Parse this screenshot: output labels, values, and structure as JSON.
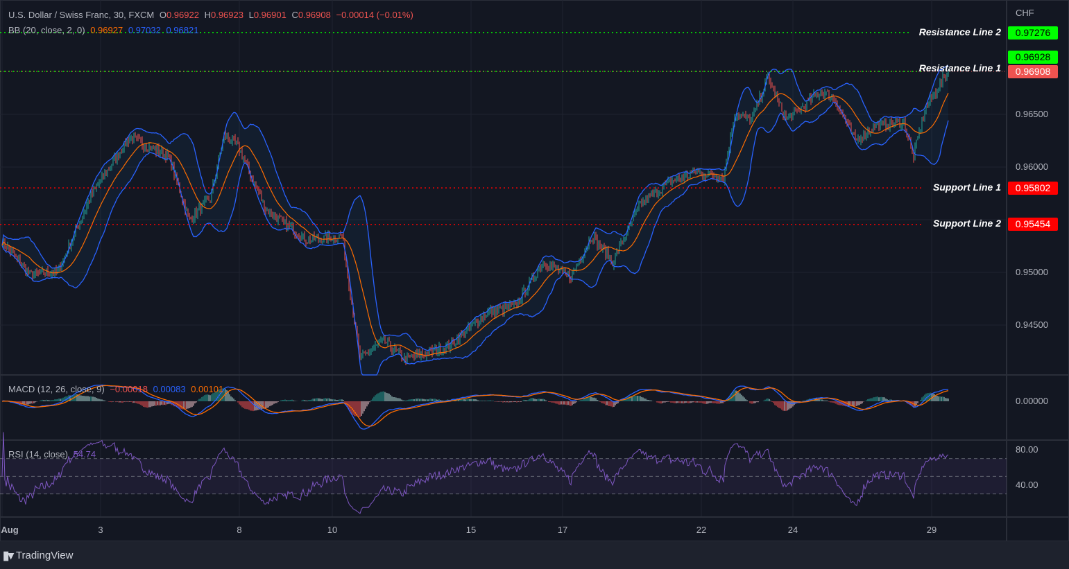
{
  "header": {
    "symbol": "U.S. Dollar / Swiss Franc, 30, FXCM",
    "o_label": "O",
    "o": "0.96922",
    "h_label": "H",
    "h": "0.96923",
    "l_label": "L",
    "l": "0.96901",
    "c_label": "C",
    "c": "0.96908",
    "change": "−0.00014 (−0.01%)"
  },
  "bb": {
    "label": "BB (20, close, 2, 0)",
    "basis": "0.96927",
    "upper": "0.97032",
    "lower": "0.96821"
  },
  "macd": {
    "label": "MACD (12, 26, close, 9)",
    "hist": "−0.00018",
    "macd": "0.00083",
    "signal": "0.00101"
  },
  "rsi": {
    "label": "RSI (14, close)",
    "value": "54.74"
  },
  "price_axis": {
    "currency": "CHF",
    "ticks": [
      "0.96500",
      "0.96000",
      "0.95000",
      "0.94500"
    ],
    "macd_tick": "0.00000",
    "rsi_ticks": [
      "80.00",
      "40.00"
    ]
  },
  "lines": [
    {
      "name": "Resistance Line 2",
      "value": "0.97276",
      "color": "#00ff00",
      "text_color": "#000000"
    },
    {
      "name": "Resistance Line 1",
      "value": "0.96908",
      "color": "#00ff00",
      "text_color": "#000000"
    },
    {
      "name": "Support Line 1",
      "value": "0.95802",
      "color": "#ff0000",
      "text_color": "#ffffff"
    },
    {
      "name": "Support Line 2",
      "value": "0.95454",
      "color": "#ff0000",
      "text_color": "#ffffff"
    }
  ],
  "price_tags": {
    "bb_basis": "0.96928",
    "last": "0.96908"
  },
  "time_axis": [
    "Aug",
    "3",
    "8",
    "10",
    "15",
    "17",
    "22",
    "24",
    "29"
  ],
  "brand": "TradingView",
  "colors": {
    "up": "#26a69a",
    "down": "#ef5350",
    "bb_band": "#2962ff",
    "bb_basis": "#ff6d00",
    "rsi": "#7e57c2"
  },
  "chart_data": {
    "type": "candlestick",
    "title": "U.S. Dollar / Swiss Franc, 30, FXCM",
    "ylim": [
      0.941,
      0.9765
    ],
    "time_ticks": [
      {
        "label": "Aug",
        "bar": 0
      },
      {
        "label": "3",
        "bar": 71
      },
      {
        "label": "8",
        "bar": 171
      },
      {
        "label": "10",
        "bar": 238
      },
      {
        "label": "15",
        "bar": 338
      },
      {
        "label": "17",
        "bar": 404
      },
      {
        "label": "22",
        "bar": 504
      },
      {
        "label": "24",
        "bar": 570
      },
      {
        "label": "29",
        "bar": 670
      }
    ],
    "close_anchors": [
      [
        0,
        0.953
      ],
      [
        20,
        0.9498
      ],
      [
        40,
        0.95
      ],
      [
        65,
        0.9575
      ],
      [
        92,
        0.9628
      ],
      [
        120,
        0.961
      ],
      [
        135,
        0.955
      ],
      [
        150,
        0.957
      ],
      [
        160,
        0.963
      ],
      [
        170,
        0.962
      ],
      [
        190,
        0.956
      ],
      [
        220,
        0.953
      ],
      [
        245,
        0.9535
      ],
      [
        258,
        0.9418
      ],
      [
        275,
        0.9435
      ],
      [
        290,
        0.9418
      ],
      [
        320,
        0.9428
      ],
      [
        350,
        0.9462
      ],
      [
        370,
        0.9468
      ],
      [
        390,
        0.951
      ],
      [
        410,
        0.9495
      ],
      [
        425,
        0.9535
      ],
      [
        440,
        0.951
      ],
      [
        460,
        0.9565
      ],
      [
        480,
        0.9585
      ],
      [
        500,
        0.9595
      ],
      [
        520,
        0.959
      ],
      [
        528,
        0.965
      ],
      [
        540,
        0.9645
      ],
      [
        552,
        0.9685
      ],
      [
        565,
        0.9645
      ],
      [
        580,
        0.966
      ],
      [
        590,
        0.9672
      ],
      [
        600,
        0.9665
      ],
      [
        615,
        0.9625
      ],
      [
        630,
        0.964
      ],
      [
        650,
        0.9642
      ],
      [
        657,
        0.961
      ],
      [
        665,
        0.9655
      ],
      [
        682,
        0.96908
      ]
    ],
    "bars": 683
  }
}
